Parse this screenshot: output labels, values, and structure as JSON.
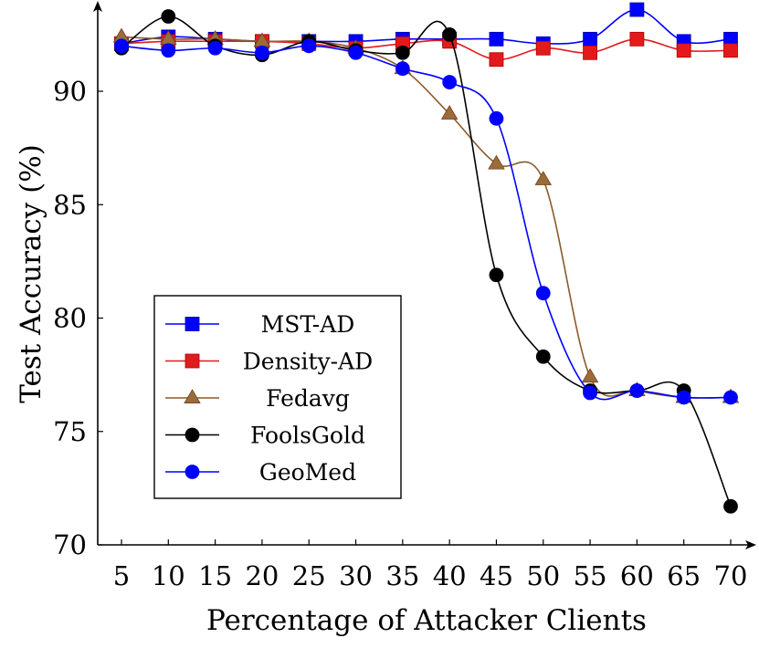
{
  "chart_data": {
    "type": "line",
    "title": "",
    "xlabel": "Percentage of Attacker Clients",
    "ylabel": "Test Accuracy (%)",
    "x": [
      5,
      10,
      15,
      20,
      25,
      30,
      35,
      40,
      45,
      50,
      55,
      60,
      65,
      70
    ],
    "x_ticks": [
      "5",
      "10",
      "15",
      "20",
      "25",
      "30",
      "35",
      "40",
      "45",
      "50",
      "55",
      "60",
      "65",
      "70"
    ],
    "y_ticks": [
      "70",
      "75",
      "80",
      "85",
      "90"
    ],
    "xlim": [
      2.5,
      72
    ],
    "ylim": [
      70,
      94
    ],
    "grid": false,
    "legend_position": "lower-left",
    "series": [
      {
        "name": "MST-AD",
        "marker": "square",
        "color": "#0000ff",
        "values": [
          92.1,
          92.4,
          92.3,
          92.2,
          92.2,
          92.2,
          92.3,
          92.3,
          92.3,
          92.1,
          92.3,
          93.6,
          92.2,
          92.3
        ]
      },
      {
        "name": "Density-AD",
        "marker": "square",
        "color": "#e31a1c",
        "values": [
          92.1,
          92.2,
          92.2,
          92.2,
          92.1,
          91.9,
          92.1,
          92.2,
          91.4,
          91.9,
          91.7,
          92.3,
          91.8,
          91.8
        ]
      },
      {
        "name": "Fedavg",
        "marker": "triangle",
        "color": "#8b5a2b",
        "values": [
          92.4,
          92.3,
          92.3,
          92.2,
          92.2,
          91.9,
          91.0,
          89.0,
          86.8,
          86.1,
          77.4,
          76.8,
          76.5,
          76.5
        ]
      },
      {
        "name": "FoolsGold",
        "marker": "circle",
        "color": "#000000",
        "values": [
          91.9,
          93.3,
          92.0,
          91.6,
          92.2,
          91.8,
          91.7,
          92.5,
          81.9,
          78.3,
          76.8,
          76.8,
          76.8,
          71.7
        ]
      },
      {
        "name": "GeoMed",
        "marker": "circle",
        "color": "#0000ff",
        "values": [
          92.0,
          91.8,
          91.9,
          91.7,
          92.0,
          91.7,
          91.0,
          90.4,
          88.8,
          81.1,
          76.7,
          76.8,
          76.5,
          76.5
        ]
      }
    ]
  }
}
